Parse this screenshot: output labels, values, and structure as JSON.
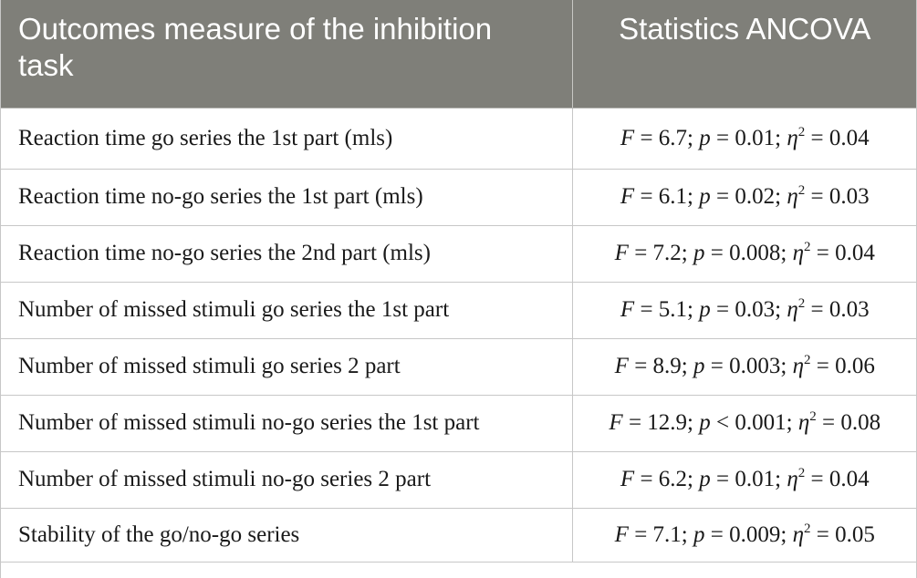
{
  "table": {
    "headers": {
      "outcome": "Outcomes measure of the inhibition task",
      "statistics": "Statistics ANCOVA"
    },
    "symbols": {
      "F": "F",
      "p": "p",
      "eta": "η",
      "squared": "2"
    },
    "rows": [
      {
        "label": "Reaction time go series the 1st part (mls)",
        "F": "6.7",
        "p_op": "=",
        "p": "0.01",
        "eta2": "0.04"
      },
      {
        "label": "Reaction time no-go series the 1st part (mls)",
        "F": "6.1",
        "p_op": "=",
        "p": "0.02",
        "eta2": "0.03"
      },
      {
        "label": "Reaction time no-go series the 2nd part (mls)",
        "F": "7.2",
        "p_op": "=",
        "p": "0.008",
        "eta2": "0.04"
      },
      {
        "label": "Number of missed stimuli go series the 1st part",
        "F": "5.1",
        "p_op": "=",
        "p": "0.03",
        "eta2": "0.03"
      },
      {
        "label": "Number of missed stimuli go series 2 part",
        "F": "8.9",
        "p_op": "=",
        "p": "0.003",
        "eta2": "0.06"
      },
      {
        "label": "Number of missed stimuli no-go series the 1st part",
        "F": "12.9",
        "p_op": "<",
        "p": "0.001",
        "eta2": "0.08"
      },
      {
        "label": "Number of missed stimuli no-go series 2 part",
        "F": "6.2",
        "p_op": "=",
        "p": "0.01",
        "eta2": "0.04"
      },
      {
        "label": "Stability of the go/no-go series",
        "F": "7.1",
        "p_op": "=",
        "p": "0.009",
        "eta2": "0.05"
      }
    ]
  }
}
